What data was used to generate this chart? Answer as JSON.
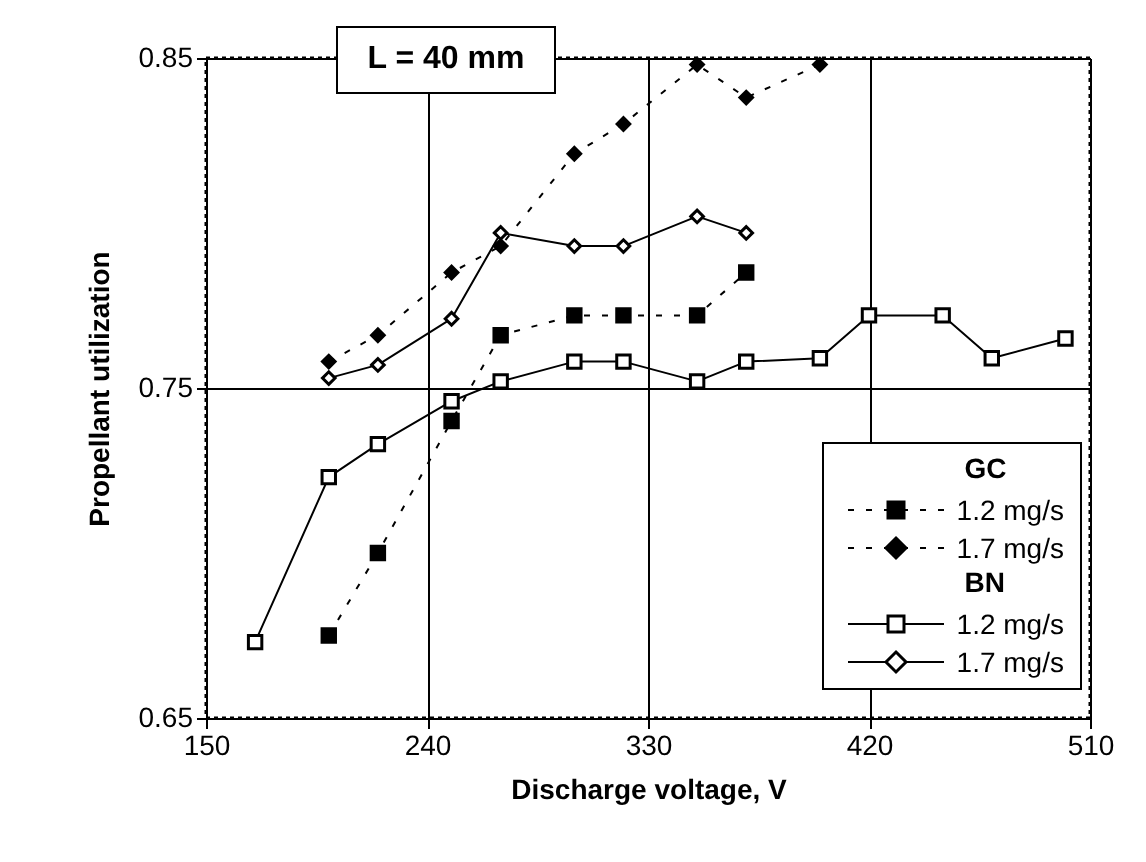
{
  "chart_data": {
    "type": "line",
    "xlabel": "Discharge voltage, V",
    "ylabel": "Propellant utilization",
    "annotations": [
      "L = 40 mm",
      "GC",
      "BN"
    ],
    "xlim": [
      150,
      510
    ],
    "xticks": [
      150,
      240,
      330,
      420,
      510
    ],
    "ylim": [
      0.65,
      0.85
    ],
    "yticks": [
      0.65,
      0.75,
      0.85
    ],
    "grid": true,
    "legend": "bottom right",
    "series": [
      {
        "name": "1.2 mg/s",
        "color": "#000000",
        "marker": "square",
        "line_style": "dashed",
        "x": [
          200,
          220,
          250,
          270,
          300,
          320,
          350,
          370
        ],
        "values": [
          0.675,
          0.7,
          0.74,
          0.766,
          0.772,
          0.772,
          0.772,
          0.785
        ]
      },
      {
        "name": "1.7 mg/s",
        "color": "#000000",
        "marker": "diamond",
        "line_style": "dashed",
        "x": [
          200,
          220,
          250,
          270,
          300,
          320,
          350,
          370,
          400
        ],
        "values": [
          0.758,
          0.766,
          0.785,
          0.793,
          0.821,
          0.83,
          0.848,
          0.838,
          0.848
        ]
      },
      {
        "name": "1.2 mg/s",
        "color": "#000000",
        "marker": "square",
        "line_style": "solid",
        "x": [
          170,
          200,
          220,
          250,
          270,
          300,
          320,
          350,
          370,
          400,
          420,
          450,
          470,
          500
        ],
        "values": [
          0.673,
          0.723,
          0.733,
          0.746,
          0.752,
          0.758,
          0.758,
          0.752,
          0.758,
          0.759,
          0.772,
          0.772,
          0.759,
          0.765
        ]
      },
      {
        "name": "1.7 mg/s",
        "color": "#000000",
        "marker": "diamond",
        "line_style": "solid",
        "x": [
          200,
          220,
          250,
          270,
          300,
          320,
          350,
          370
        ],
        "values": [
          0.753,
          0.757,
          0.771,
          0.797,
          0.793,
          0.793,
          0.802,
          0.797
        ]
      }
    ]
  }
}
